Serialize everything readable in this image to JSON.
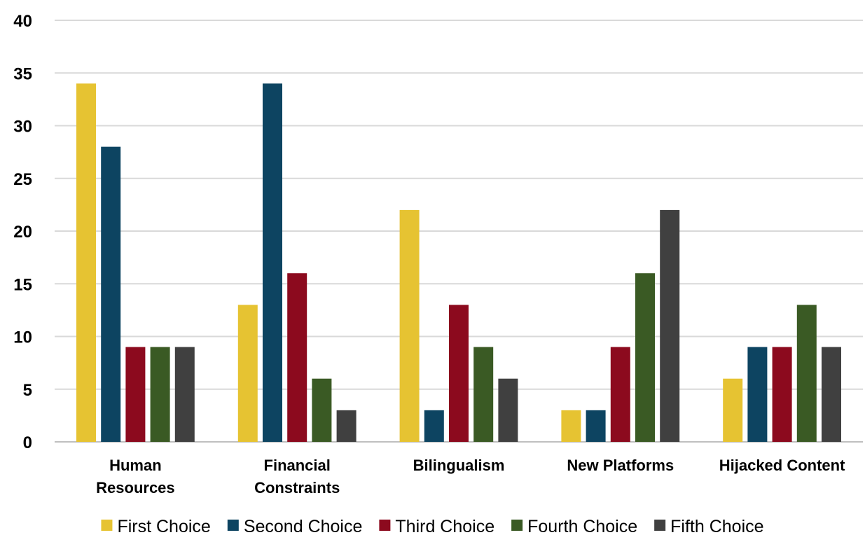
{
  "chart_data": {
    "type": "bar",
    "categories": [
      [
        "Human",
        "Resources"
      ],
      [
        "Financial",
        "Constraints"
      ],
      [
        "Bilingualism"
      ],
      [
        "New Platforms"
      ],
      [
        "Hijacked Content"
      ]
    ],
    "series": [
      {
        "name": "First Choice",
        "color": "#E6C332",
        "values": [
          34,
          13,
          22,
          3,
          6
        ]
      },
      {
        "name": "Second Choice",
        "color": "#0D4461",
        "values": [
          28,
          34,
          3,
          3,
          9
        ]
      },
      {
        "name": "Third Choice",
        "color": "#8C0A1E",
        "values": [
          9,
          16,
          13,
          9,
          9
        ]
      },
      {
        "name": "Fourth Choice",
        "color": "#3A5A24",
        "values": [
          9,
          6,
          9,
          16,
          13
        ]
      },
      {
        "name": "Fifth Choice",
        "color": "#404040",
        "values": [
          9,
          3,
          6,
          22,
          9
        ]
      }
    ],
    "yticks": [
      0,
      5,
      10,
      15,
      20,
      25,
      30,
      35,
      40
    ],
    "ylim": [
      0,
      40
    ],
    "grid": true,
    "legend": "bottom",
    "title": "",
    "xlabel": "",
    "ylabel": ""
  }
}
